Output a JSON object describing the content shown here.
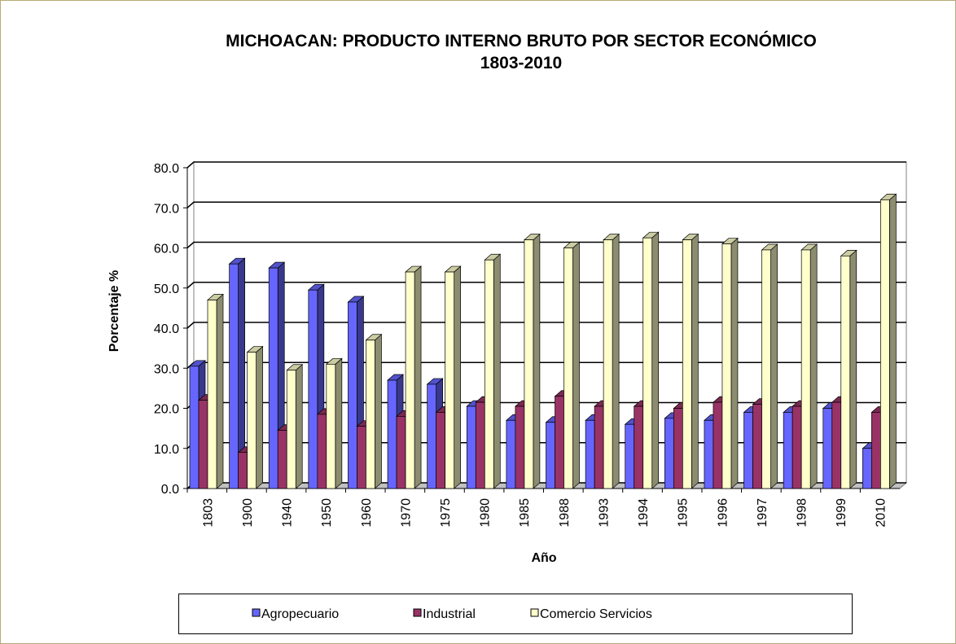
{
  "chart_data": {
    "type": "bar3d",
    "title": "MICHOACAN: PRODUCTO INTERNO BRUTO POR SECTOR ECONÓMICO",
    "subtitle": "1803-2010",
    "x_label": "Año",
    "y_label": "Porcentaje %",
    "categories": [
      "1803",
      "1900",
      "1940",
      "1950",
      "1960",
      "1970",
      "1975",
      "1980",
      "1985",
      "1988",
      "1993",
      "1994",
      "1995",
      "1996",
      "1997",
      "1998",
      "1999",
      "2010"
    ],
    "series": [
      {
        "name": "Agropecuario",
        "color": "#6666ff",
        "values": [
          30.5,
          56,
          55,
          49.5,
          46.5,
          27,
          26,
          20.5,
          17,
          16.5,
          17,
          16,
          17.5,
          17,
          19,
          19,
          20,
          10
        ]
      },
      {
        "name": "Industrial",
        "color": "#993366",
        "values": [
          22,
          9,
          14.5,
          18.5,
          15.5,
          18,
          19,
          21.5,
          20.5,
          23,
          20.5,
          20.5,
          20,
          21.5,
          21,
          20.5,
          21.5,
          19
        ]
      },
      {
        "name": "Comercio Servicios",
        "color": "#ffffcc",
        "values": [
          47,
          34,
          29.5,
          31,
          37,
          54,
          54,
          57,
          62,
          60,
          62,
          62.5,
          62,
          61,
          59.5,
          59.5,
          58,
          72
        ]
      }
    ],
    "ylim": [
      0,
      80
    ],
    "yticks": [
      {
        "value": 0,
        "label": "0.0"
      },
      {
        "value": 10,
        "label": "10.0"
      },
      {
        "value": 20,
        "label": "20.0"
      },
      {
        "value": 30,
        "label": "30.0"
      },
      {
        "value": 40,
        "label": "40.0"
      },
      {
        "value": 50,
        "label": "50.0"
      },
      {
        "value": 60,
        "label": "60.0"
      },
      {
        "value": 70,
        "label": "70.0"
      },
      {
        "value": 80,
        "label": "80.0"
      }
    ],
    "grid": true,
    "legend": "bottom"
  }
}
